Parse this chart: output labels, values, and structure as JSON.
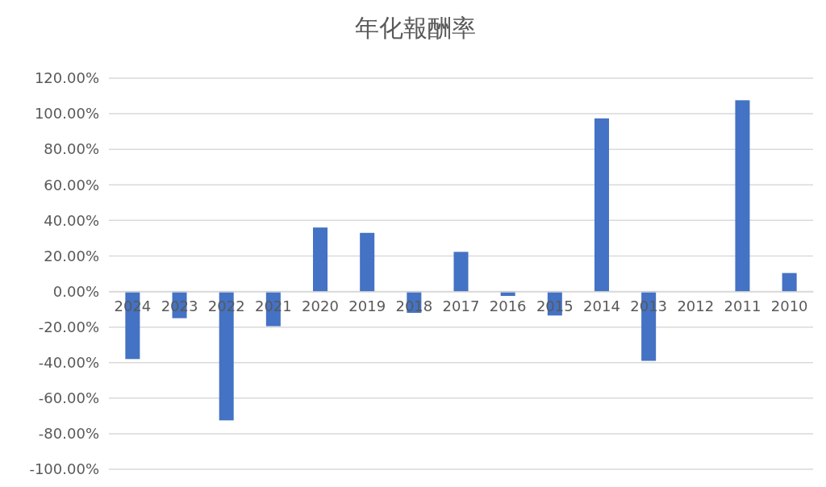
{
  "chart_data": {
    "type": "bar",
    "title": "年化報酬率",
    "categories": [
      "2024",
      "2023",
      "2022",
      "2021",
      "2020",
      "2019",
      "2018",
      "2017",
      "2016",
      "2015",
      "2014",
      "2013",
      "2012",
      "2011",
      "2010"
    ],
    "values": [
      -38,
      -15,
      -72.5,
      -19.5,
      36,
      33,
      -12,
      22.3,
      -2.5,
      -13.5,
      97.4,
      -39,
      0,
      107.6,
      10.4
    ],
    "color": "#4472c4",
    "ylim": [
      -100,
      120
    ],
    "yticks": [
      {
        "value": -100,
        "label": "-100.00%"
      },
      {
        "value": -80,
        "label": "-80.00%"
      },
      {
        "value": -60,
        "label": "-60.00%"
      },
      {
        "value": -40,
        "label": "-40.00%"
      },
      {
        "value": -20,
        "label": "-20.00%"
      },
      {
        "value": 0,
        "label": "0.00%"
      },
      {
        "value": 20,
        "label": "20.00%"
      },
      {
        "value": 40,
        "label": "40.00%"
      },
      {
        "value": 60,
        "label": "60.00%"
      },
      {
        "value": 80,
        "label": "80.00%"
      },
      {
        "value": 100,
        "label": "100.00%"
      },
      {
        "value": 120,
        "label": "120.00%"
      }
    ],
    "grid": "y"
  }
}
